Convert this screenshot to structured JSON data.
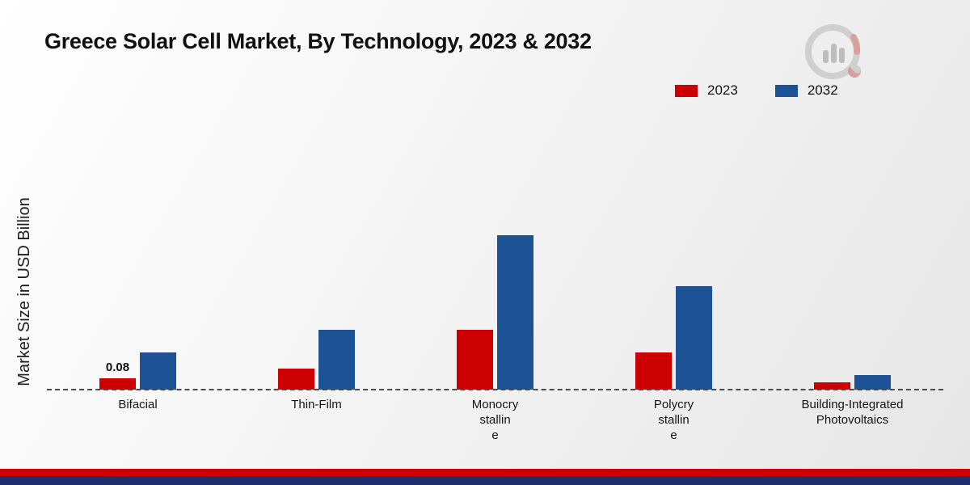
{
  "page": {
    "title": "Greece Solar Cell Market, By Technology, 2023 & 2032",
    "y_axis_label": "Market Size in USD Billion"
  },
  "legend": [
    {
      "label": "2023",
      "color": "#cc0000"
    },
    {
      "label": "2032",
      "color": "#1d5296"
    }
  ],
  "chart_data": {
    "type": "bar",
    "title": "Greece Solar Cell Market, By Technology, 2023 & 2032",
    "xlabel": "",
    "ylabel": "Market Size in USD Billion",
    "categories": [
      "Bifacial",
      "Thin-Film",
      "Monocry\nstallin\ne",
      "Polycry\nstallin\ne",
      "Building-Integrated\nPhotovoltaics"
    ],
    "series": [
      {
        "name": "2023",
        "color": "#cc0000",
        "values": [
          0.08,
          0.15,
          0.42,
          0.26,
          0.05
        ]
      },
      {
        "name": "2032",
        "color": "#1d5296",
        "values": [
          0.26,
          0.42,
          1.09,
          0.73,
          0.1
        ]
      }
    ],
    "data_labels": [
      {
        "series": "2023",
        "category_index": 0,
        "text": "0.08"
      }
    ],
    "ylim": [
      0,
      1.2
    ],
    "grid": false,
    "legend_position": "top-right",
    "baseline_style": "dashed"
  },
  "footer": {
    "red_stripe_color": "#cc0000",
    "navy_stripe_color": "#1c2e6e"
  }
}
